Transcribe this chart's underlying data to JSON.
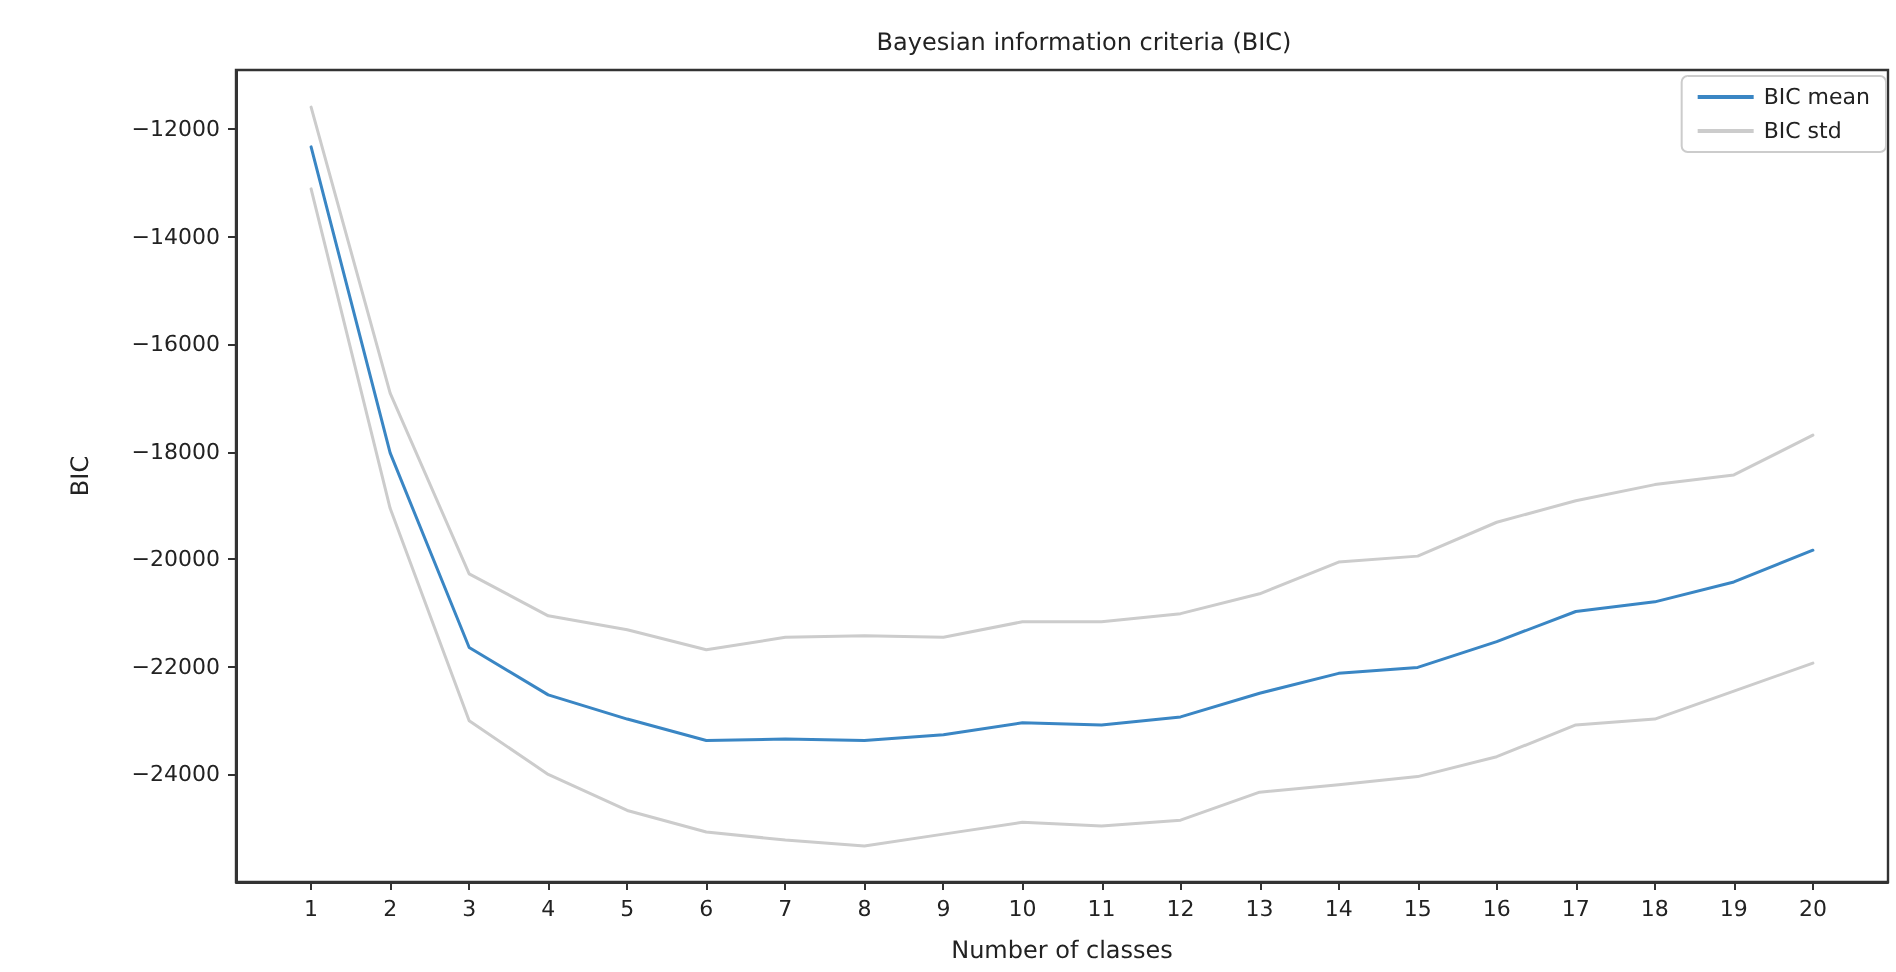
{
  "chart_data": {
    "type": "line",
    "title": "Bayesian information criteria (BIC)",
    "xlabel": "Number of classes",
    "ylabel": "BIC",
    "x": [
      1,
      2,
      3,
      4,
      5,
      6,
      7,
      8,
      9,
      10,
      11,
      12,
      13,
      14,
      15,
      16,
      17,
      18,
      19,
      20
    ],
    "series": [
      {
        "name": "BIC mean",
        "color": "#3a86c4",
        "values": [
          -12330,
          -18020,
          -21640,
          -22520,
          -22970,
          -23370,
          -23340,
          -23370,
          -23260,
          -23040,
          -23080,
          -22930,
          -22490,
          -22120,
          -22010,
          -21530,
          -20970,
          -20790,
          -20420,
          -19830
        ]
      },
      {
        "name": "BIC std",
        "color": "#cccccc",
        "values": [
          -11590,
          -16910,
          -20270,
          -21050,
          -21310,
          -21680,
          -21450,
          -21420,
          -21450,
          -21160,
          -21160,
          -21010,
          -20640,
          -20050,
          -19940,
          -19310,
          -18910,
          -18610,
          -18430,
          -17690
        ]
      },
      {
        "color": "#cccccc",
        "values": [
          -13110,
          -19050,
          -23000,
          -24000,
          -24670,
          -25070,
          -25220,
          -25330,
          -25110,
          -24890,
          -24960,
          -24850,
          -24330,
          -24190,
          -24040,
          -23670,
          -23080,
          -22970,
          -22450,
          -21930
        ]
      }
    ],
    "xlim": [
      0.05,
      20.95
    ],
    "xticks": [
      1,
      2,
      3,
      4,
      5,
      6,
      7,
      8,
      9,
      10,
      11,
      12,
      13,
      14,
      15,
      16,
      17,
      18,
      19,
      20
    ],
    "ylim": [
      -26000,
      -10900
    ],
    "yticks": [
      -24000,
      -22000,
      -20000,
      -18000,
      -16000,
      -14000,
      -12000
    ],
    "grid": false,
    "legend": "top right",
    "marker": "none",
    "line_style": "solid"
  }
}
